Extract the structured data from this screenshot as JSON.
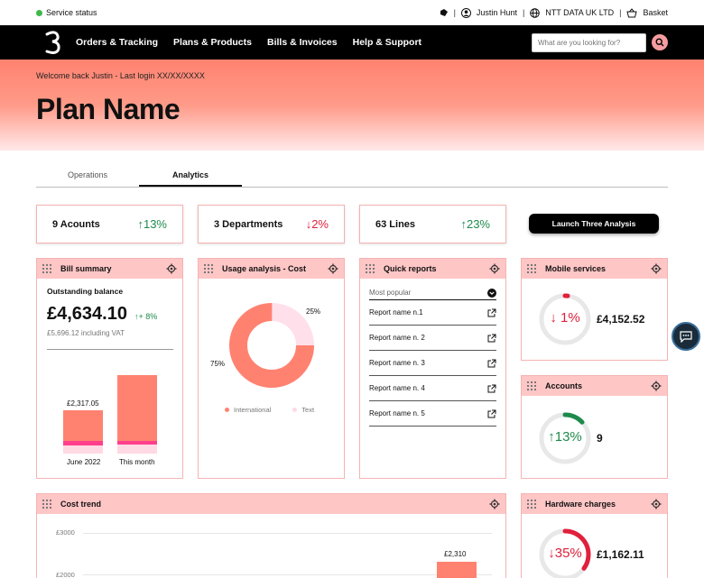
{
  "utility": {
    "service_status": "Service status",
    "user_name": "Justin Hunt",
    "company": "NTT DATA UK LTD",
    "basket": "Basket",
    "separator": "|"
  },
  "nav": {
    "items": [
      "Orders & Tracking",
      "Plans & Products",
      "Bills & Invoices",
      "Help & Support"
    ],
    "search_placeholder": "What are you looking for?"
  },
  "hero": {
    "welcome": "Welcome back Justin - Last login XX/XX/XXXX",
    "plan_name": "Plan Name"
  },
  "tabs": [
    "Operations",
    "Analytics"
  ],
  "kpis": [
    {
      "label": "9 Acounts",
      "change": "↑13%",
      "dir": "up"
    },
    {
      "label": "3 Departments",
      "change": "↓2%",
      "dir": "down"
    },
    {
      "label": "63 Lines",
      "change": "↑23%",
      "dir": "up"
    }
  ],
  "launch_label": "Launch Three Analysis",
  "bill_summary": {
    "title": "Bill summary",
    "outstanding_label": "Outstanding balance",
    "amount": "£4,634.10",
    "change": "↑+ 8%",
    "vat_note": "£5,696.12 including VAT",
    "bar_value_label": "£2,317.05",
    "bar_labels": [
      "June 2022",
      "This month"
    ]
  },
  "usage": {
    "title": "Usage analysis - Cost",
    "pct_small": "25%",
    "pct_large": "75%",
    "legend": [
      "International",
      "Text"
    ]
  },
  "quick_reports": {
    "title": "Quick reports",
    "dropdown": "Most popular",
    "items": [
      "Report name n.1",
      "Report name n. 2",
      "Report name n. 3",
      "Report name n. 4",
      "Report name n. 5"
    ]
  },
  "mobile_services": {
    "title": "Mobile services",
    "pct": "↓ 1%",
    "value": "£4,152.52",
    "ring_fraction": 0.01
  },
  "accounts": {
    "title": "Accounts",
    "pct": "↑13%",
    "value": "9",
    "ring_fraction": 0.13
  },
  "hardware": {
    "title": "Hardware charges",
    "pct": "↓35%",
    "value": "£1,162.11",
    "ring_fraction": 0.35
  },
  "cost_trend": {
    "title": "Cost trend",
    "ticks": [
      "£3000",
      "£2000"
    ],
    "bar_label": "£2,310"
  },
  "colors": {
    "accent": "#ff8270",
    "pink": "#ffc6c6",
    "up": "#1e8a4c",
    "down": "#e1203b"
  }
}
